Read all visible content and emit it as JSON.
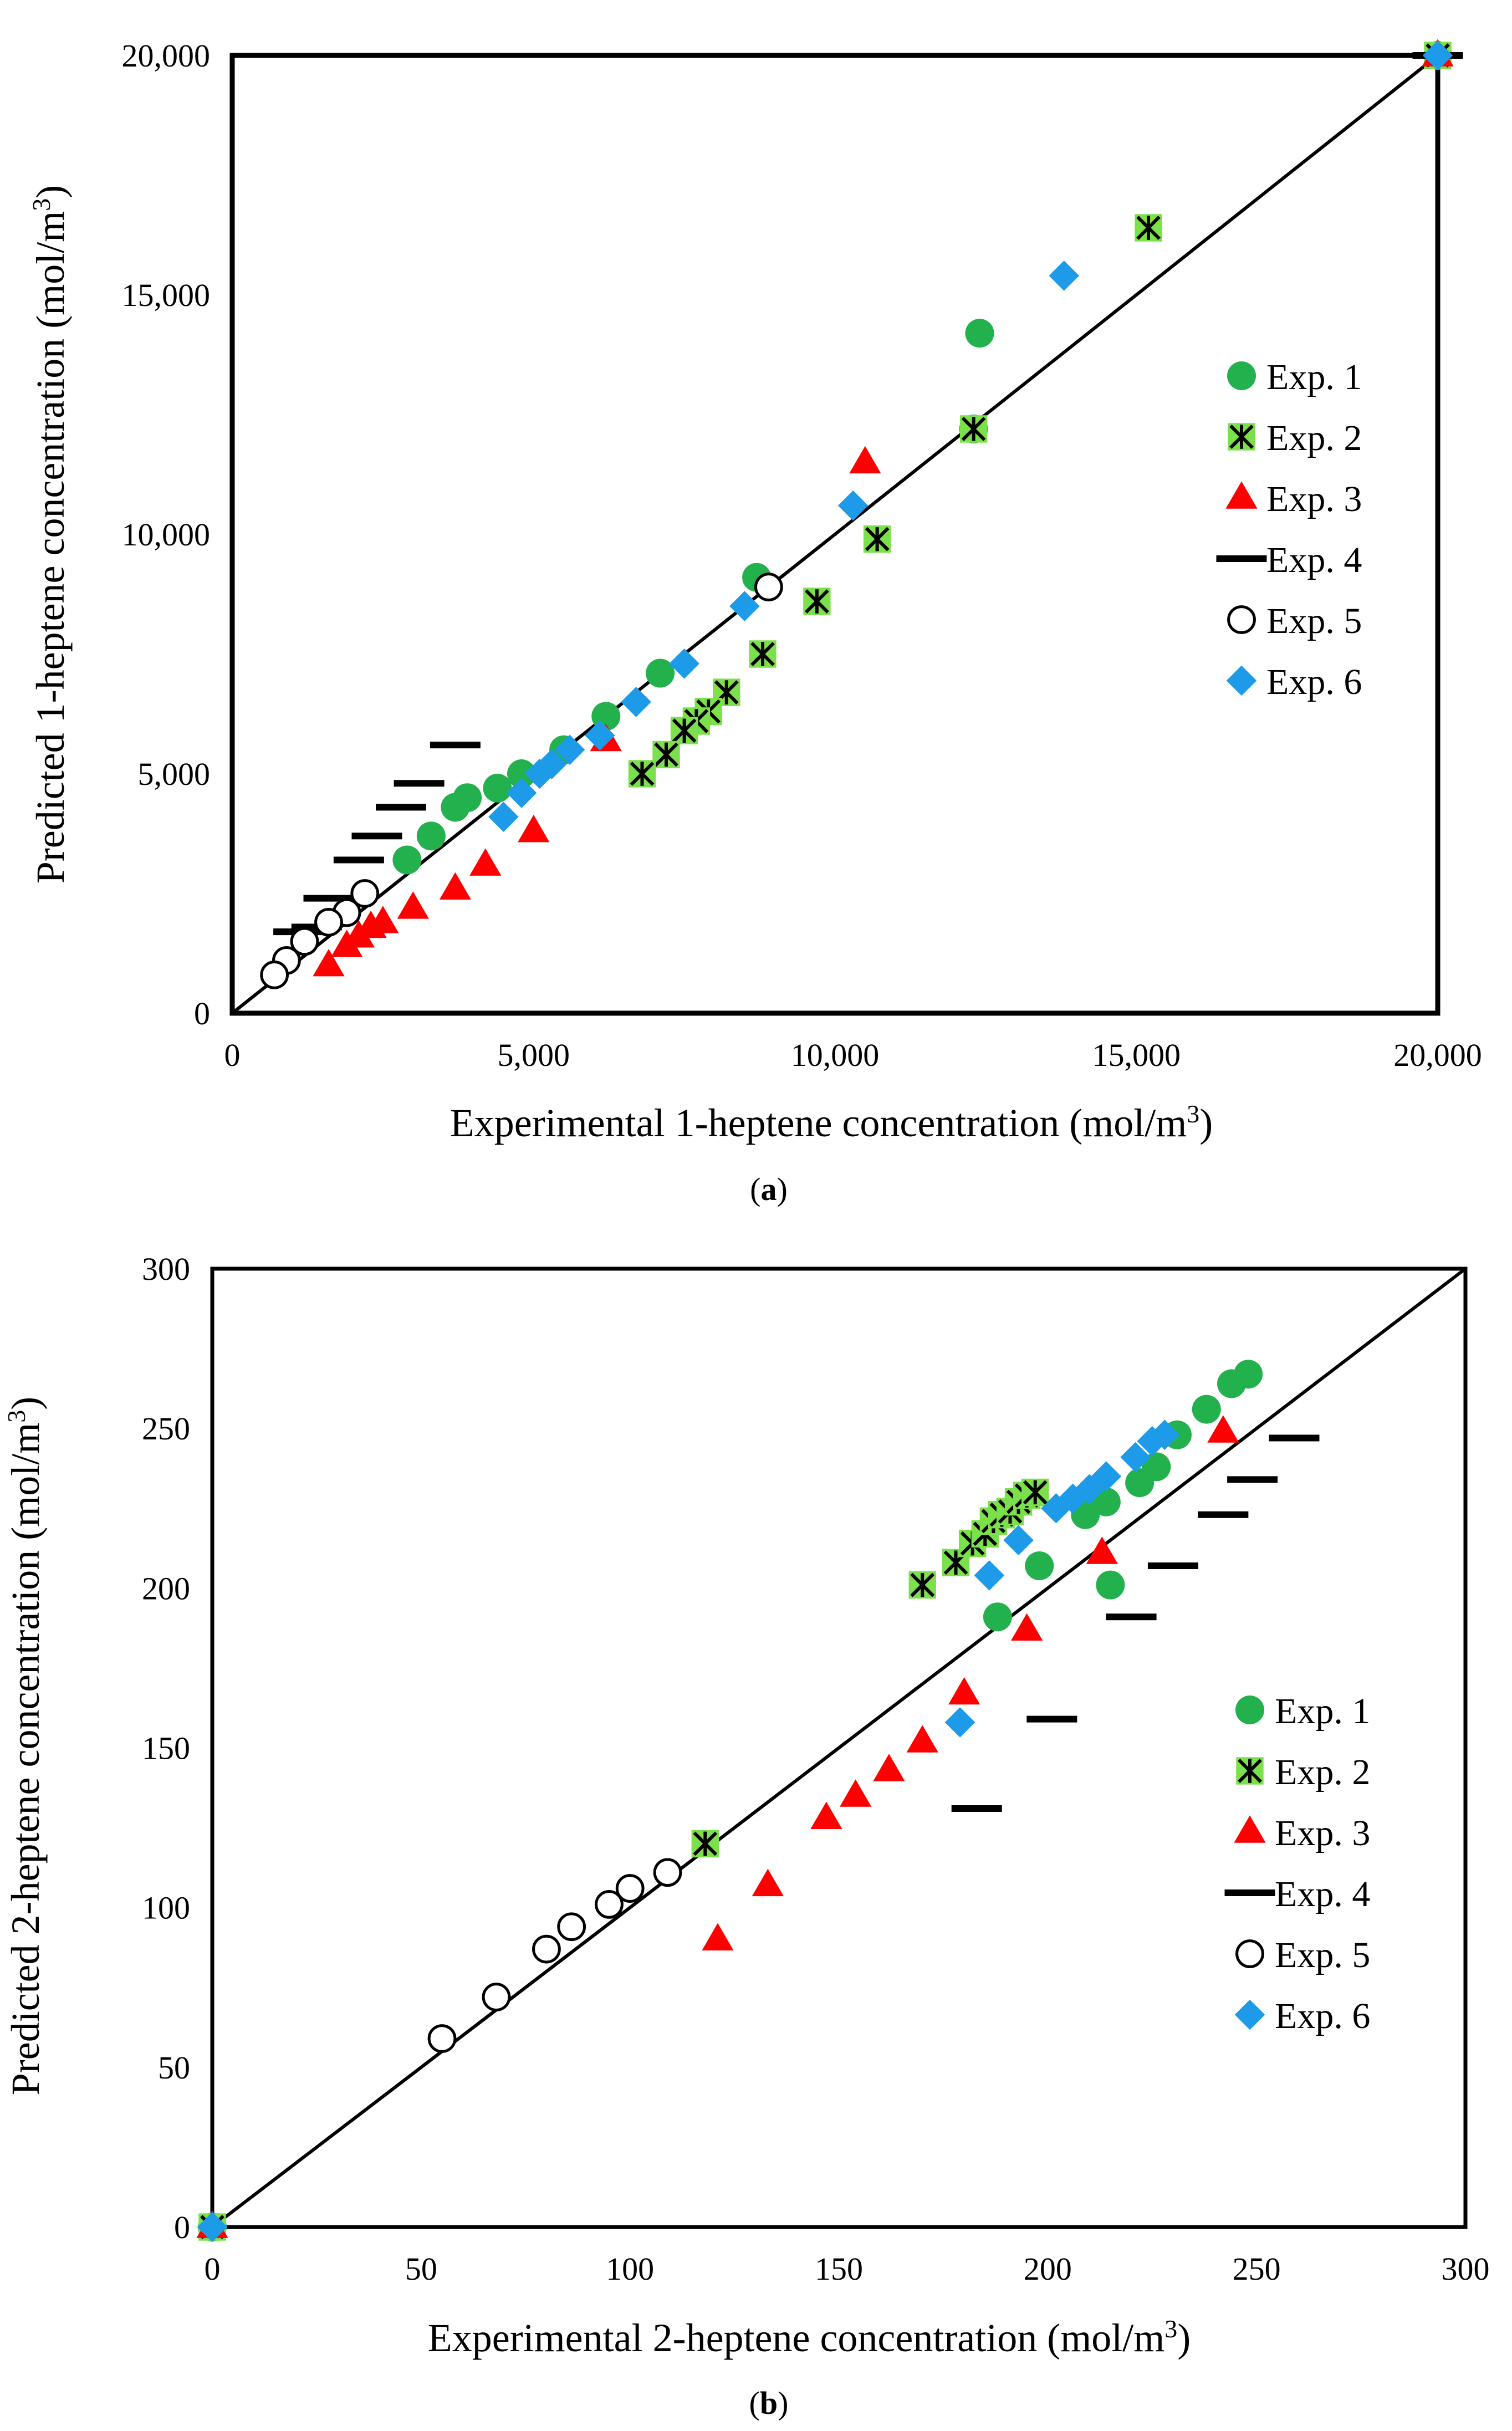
{
  "chart_data": [
    {
      "type": "scatter",
      "panel": "(a)",
      "panel_letter": "a",
      "xlabel_pre": "Experimental 1-heptene concentration (mol/m",
      "ylabel_pre": "Predicted 1-heptene concentration (mol/m",
      "unit_exp": "3",
      "unit_close": ")",
      "xlim": [
        0,
        20000
      ],
      "ylim": [
        0,
        20000
      ],
      "xticks": [
        0,
        5000,
        10000,
        15000,
        20000
      ],
      "yticks": [
        0,
        5000,
        10000,
        15000,
        20000
      ],
      "xtick_labels": [
        "0",
        "5,000",
        "10,000",
        "15,000",
        "20,000"
      ],
      "ytick_labels": [
        "0",
        "5,000",
        "10,000",
        "15,000",
        "20,000"
      ],
      "parity_line": true,
      "series": [
        {
          "name": "Exp. 1",
          "marker": "circle",
          "color": "#22b14c",
          "points": [
            [
              20000,
              20000
            ],
            [
              12400,
              14200
            ],
            [
              12300,
              12200
            ],
            [
              8700,
              9100
            ],
            [
              7100,
              7100
            ],
            [
              6200,
              6200
            ],
            [
              5500,
              5500
            ],
            [
              4800,
              5000
            ],
            [
              4400,
              4700
            ],
            [
              3900,
              4500
            ],
            [
              3700,
              4300
            ],
            [
              3300,
              3700
            ],
            [
              2900,
              3200
            ]
          ]
        },
        {
          "name": "Exp. 2",
          "marker": "asterisk-square",
          "color": "#7be04b",
          "points": [
            [
              20000,
              20000
            ],
            [
              15200,
              16400
            ],
            [
              12300,
              12200
            ],
            [
              10700,
              9900
            ],
            [
              9700,
              8600
            ],
            [
              8800,
              7500
            ],
            [
              8200,
              6700
            ],
            [
              7900,
              6300
            ],
            [
              7700,
              6100
            ],
            [
              7500,
              5900
            ],
            [
              7200,
              5400
            ],
            [
              6800,
              5000
            ]
          ]
        },
        {
          "name": "Exp. 3",
          "marker": "triangle",
          "color": "#ff0000",
          "points": [
            [
              20000,
              20000
            ],
            [
              10500,
              11500
            ],
            [
              6200,
              5700
            ],
            [
              5000,
              3800
            ],
            [
              4200,
              3100
            ],
            [
              3700,
              2600
            ],
            [
              3000,
              2200
            ],
            [
              2500,
              1900
            ],
            [
              2300,
              1800
            ],
            [
              2100,
              1600
            ],
            [
              1900,
              1400
            ],
            [
              1600,
              1000
            ]
          ]
        },
        {
          "name": "Exp. 4",
          "marker": "dash",
          "color": "#000000",
          "points": [
            [
              20000,
              20000
            ],
            [
              3700,
              5600
            ],
            [
              3100,
              4800
            ],
            [
              2800,
              4300
            ],
            [
              2400,
              3700
            ],
            [
              2100,
              3200
            ],
            [
              1600,
              2400
            ],
            [
              1400,
              1800
            ],
            [
              1100,
              1700
            ]
          ]
        },
        {
          "name": "Exp. 5",
          "marker": "open-circle",
          "color": "#000000",
          "points": [
            [
              8900,
              8900
            ],
            [
              2200,
              2500
            ],
            [
              1900,
              2100
            ],
            [
              1600,
              1900
            ],
            [
              1200,
              1500
            ],
            [
              900,
              1100
            ],
            [
              700,
              800
            ]
          ]
        },
        {
          "name": "Exp. 6",
          "marker": "diamond",
          "color": "#1e9be8",
          "points": [
            [
              20000,
              20000
            ],
            [
              13800,
              15400
            ],
            [
              10300,
              10600
            ],
            [
              8500,
              8500
            ],
            [
              7500,
              7300
            ],
            [
              6700,
              6500
            ],
            [
              6100,
              5800
            ],
            [
              5600,
              5500
            ],
            [
              5300,
              5200
            ],
            [
              5100,
              5000
            ],
            [
              4800,
              4600
            ],
            [
              4500,
              4100
            ]
          ]
        }
      ],
      "legend": [
        "Exp. 1",
        "Exp. 2",
        "Exp. 3",
        "Exp. 4",
        "Exp. 5",
        "Exp. 6"
      ],
      "legend_position": "right-middle"
    },
    {
      "type": "scatter",
      "panel": "(b)",
      "panel_letter": "b",
      "xlabel_pre": "Experimental 2-heptene concentration (mol/m",
      "ylabel_pre": "Predicted 2-heptene concentration (mol/m",
      "unit_exp": "3",
      "unit_close": ")",
      "xlim": [
        0,
        300
      ],
      "ylim": [
        0,
        300
      ],
      "xticks": [
        0,
        50,
        100,
        150,
        200,
        250,
        300
      ],
      "yticks": [
        0,
        50,
        100,
        150,
        200,
        250,
        300
      ],
      "xtick_labels": [
        "0",
        "50",
        "100",
        "150",
        "200",
        "250",
        "300"
      ],
      "ytick_labels": [
        "0",
        "50",
        "100",
        "150",
        "200",
        "250",
        "300"
      ],
      "parity_line": true,
      "series": [
        {
          "name": "Exp. 1",
          "marker": "circle",
          "color": "#22b14c",
          "points": [
            [
              0,
              0
            ],
            [
              248,
              267
            ],
            [
              244,
              264
            ],
            [
              238,
              256
            ],
            [
              231,
              248
            ],
            [
              226,
              238
            ],
            [
              222,
              233
            ],
            [
              214,
              227
            ],
            [
              209,
              223
            ],
            [
              215,
              201
            ],
            [
              198,
              207
            ],
            [
              188,
              191
            ]
          ]
        },
        {
          "name": "Exp. 2",
          "marker": "asterisk-square",
          "color": "#7be04b",
          "points": [
            [
              0,
              0
            ],
            [
              170,
              201
            ],
            [
              178,
              208
            ],
            [
              182,
              214
            ],
            [
              185,
              217
            ],
            [
              187,
              221
            ],
            [
              189,
              223
            ],
            [
              191,
              224
            ],
            [
              193,
              227
            ],
            [
              195,
              229
            ],
            [
              197,
              230
            ],
            [
              118,
              120
            ]
          ]
        },
        {
          "name": "Exp. 3",
          "marker": "triangle",
          "color": "#ff0000",
          "points": [
            [
              0,
              0
            ],
            [
              242,
              249
            ],
            [
              213,
              211
            ],
            [
              195,
              187
            ],
            [
              180,
              167
            ],
            [
              170,
              152
            ],
            [
              162,
              143
            ],
            [
              154,
              135
            ],
            [
              147,
              128
            ],
            [
              133,
              107
            ],
            [
              121,
              90
            ]
          ]
        },
        {
          "name": "Exp. 4",
          "marker": "dash",
          "color": "#000000",
          "points": [
            [
              259,
              247
            ],
            [
              249,
              234
            ],
            [
              242,
              223
            ],
            [
              230,
              207
            ],
            [
              220,
              191
            ],
            [
              201,
              159
            ],
            [
              183,
              131
            ]
          ]
        },
        {
          "name": "Exp. 5",
          "marker": "open-circle",
          "color": "#000000",
          "points": [
            [
              109,
              111
            ],
            [
              100,
              106
            ],
            [
              95,
              101
            ],
            [
              86,
              94
            ],
            [
              80,
              87
            ],
            [
              68,
              72
            ],
            [
              55,
              59
            ]
          ]
        },
        {
          "name": "Exp. 6",
          "marker": "diamond",
          "color": "#1e9be8",
          "points": [
            [
              0,
              0
            ],
            [
              228,
              248
            ],
            [
              225,
              246
            ],
            [
              221,
              241
            ],
            [
              214,
              235
            ],
            [
              210,
              231
            ],
            [
              206,
              228
            ],
            [
              202,
              225
            ],
            [
              193,
              215
            ],
            [
              186,
              204
            ],
            [
              179,
              158
            ]
          ]
        }
      ],
      "legend": [
        "Exp. 1",
        "Exp. 2",
        "Exp. 3",
        "Exp. 4",
        "Exp. 5",
        "Exp. 6"
      ],
      "legend_position": "right-lower"
    }
  ]
}
